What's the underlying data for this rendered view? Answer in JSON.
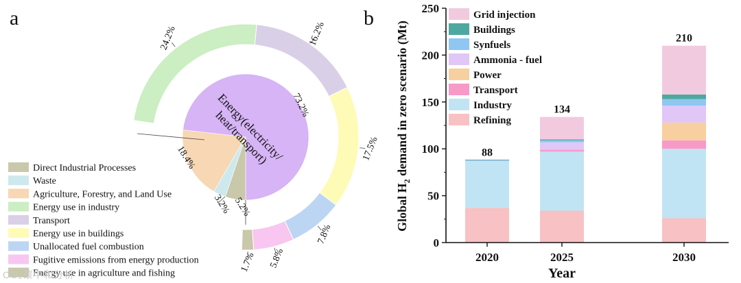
{
  "chart_data": [
    {
      "type": "pie",
      "panel_label": "a",
      "center_label": "Energy(electricity/\nheat/transport)",
      "inner_ring": {
        "slices": [
          {
            "name": "Energy(electricity/ heat/transport)",
            "value": 73.2,
            "label": "73.2%",
            "color": "#d6b4f5"
          },
          {
            "name": "Agriculture, Forestry, and Land Use",
            "value": 18.4,
            "label": "18.4%",
            "color": "#f7d7b4"
          },
          {
            "name": "Waste",
            "value": 3.2,
            "label": "3.2%",
            "color": "#cde9ee"
          },
          {
            "name": "Direct Industrial Processes",
            "value": 5.2,
            "label": "5.2%",
            "color": "#c9c8ab"
          }
        ]
      },
      "outer_ring": {
        "slices": [
          {
            "name": "Energy use in industry",
            "value": 24.2,
            "label": "24.2%",
            "color": "#cbeec2"
          },
          {
            "name": "Transport",
            "value": 16.2,
            "label": "16.2%",
            "color": "#d9d0e7"
          },
          {
            "name": "Energy use in buildings",
            "value": 17.5,
            "label": "17.5%",
            "color": "#fdfbb6"
          },
          {
            "name": "Unallocated fuel combustion",
            "value": 7.8,
            "label": "7.8%",
            "color": "#bcd5f3"
          },
          {
            "name": "Fugitive emissions from energy production",
            "value": 5.8,
            "label": "5.8%",
            "color": "#f8c6f0"
          },
          {
            "name": "Energy use in agriculture and fishing",
            "value": 1.7,
            "label": "1.7%",
            "color": "#c9c8ab"
          }
        ]
      },
      "legend": [
        {
          "label": "Direct Industrial Processes",
          "color": "#c9c8ab"
        },
        {
          "label": "Waste",
          "color": "#cde9ee"
        },
        {
          "label": "Agriculture, Forestry, and Land Use",
          "color": "#f7d7b4"
        },
        {
          "label": "Energy use in industry",
          "color": "#cbeec2"
        },
        {
          "label": "Transport",
          "color": "#d9d0e7"
        },
        {
          "label": "Energy use in buildings",
          "color": "#fdfbb6"
        },
        {
          "label": "Unallocated fuel combustion",
          "color": "#bcd5f3"
        },
        {
          "label": "Fugitive emissions from energy production",
          "color": "#f8c6f0"
        },
        {
          "label": "Energy use in agriculture and fishing",
          "color": "#c9c8ab"
        }
      ],
      "legend_placement": "bottom-left"
    },
    {
      "type": "bar",
      "stacked": true,
      "panel_label": "b",
      "categories": [
        "2020",
        "2025",
        "2030"
      ],
      "xlabel": "Year",
      "ylabel": "Global H2 demand in zero scenario (Mt)",
      "ylim": [
        0,
        250
      ],
      "yticks": [
        0,
        50,
        100,
        150,
        200,
        250
      ],
      "totals": [
        88,
        134,
        210
      ],
      "series": [
        {
          "name": "Refining",
          "color": "#f8c1c3",
          "values": [
            37,
            34,
            26
          ]
        },
        {
          "name": "Industry",
          "color": "#c1e4f4",
          "values": [
            51,
            63,
            74
          ]
        },
        {
          "name": "Transport",
          "color": "#f79ac8",
          "values": [
            0,
            2,
            9
          ]
        },
        {
          "name": "Power",
          "color": "#f8cf9e",
          "values": [
            0,
            0,
            19
          ]
        },
        {
          "name": "Ammonia - fuel",
          "color": "#e1c7f8",
          "values": [
            0,
            8,
            18
          ]
        },
        {
          "name": "Synfuels",
          "color": "#8fc7f2",
          "values": [
            0,
            2,
            7
          ]
        },
        {
          "name": "Buildings",
          "color": "#4fa8a0",
          "values": [
            0,
            1,
            5
          ]
        },
        {
          "name": "Grid injection",
          "color": "#f2cadf",
          "values": [
            0,
            24,
            52
          ]
        }
      ],
      "legend_order": [
        "Grid injection",
        "Buildings",
        "Synfuels",
        "Ammonia - fuel",
        "Power",
        "Transport",
        "Industry",
        "Refining"
      ],
      "legend_placement": "top-left",
      "grid": false
    }
  ],
  "watermark": "CO₂碳中和分析"
}
